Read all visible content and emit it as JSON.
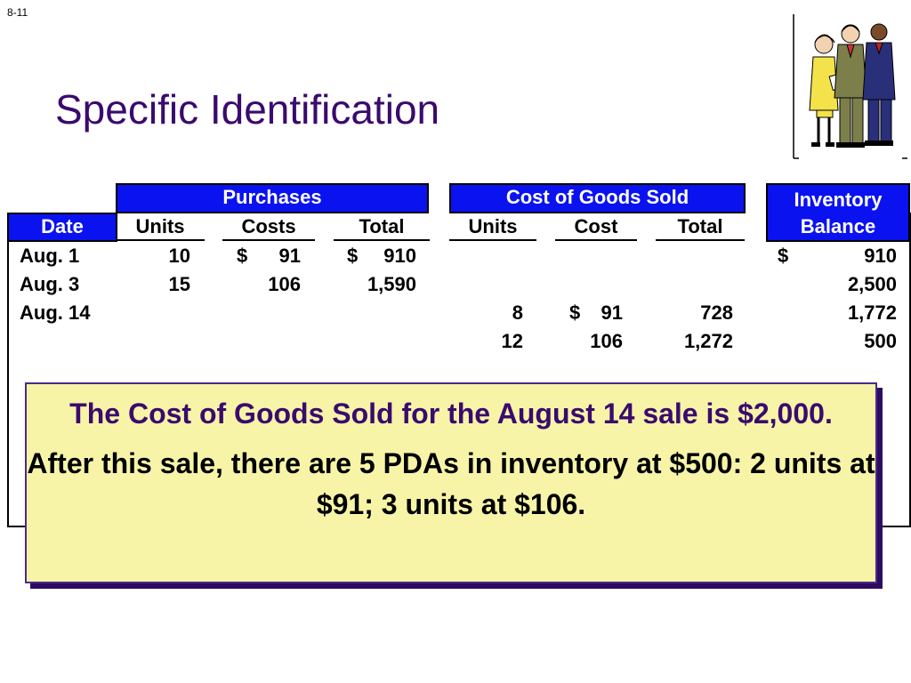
{
  "slide_number": "8-11",
  "title": "Specific Identification",
  "clipart": {
    "icon": "business-people-icon"
  },
  "table": {
    "group_headers": {
      "purchases": "Purchases",
      "cogs": "Cost of Goods Sold",
      "inventory_line1": "Inventory",
      "inventory_line2": "Balance"
    },
    "sub_headers": {
      "date": "Date",
      "p_units": "Units",
      "p_costs": "Costs",
      "p_total": "Total",
      "c_units": "Units",
      "c_cost": "Cost",
      "c_total": "Total"
    },
    "rows": [
      {
        "date": "Aug. 1",
        "p_units": "10",
        "p_cost_sym": "$",
        "p_cost": "91",
        "p_total_sym": "$",
        "p_total": "910",
        "c_units": "",
        "c_cost_sym": "",
        "c_cost": "",
        "c_total": "",
        "inv_sym": "$",
        "inv": "910"
      },
      {
        "date": "Aug. 3",
        "p_units": "15",
        "p_cost_sym": "",
        "p_cost": "106",
        "p_total_sym": "",
        "p_total": "1,590",
        "c_units": "",
        "c_cost_sym": "",
        "c_cost": "",
        "c_total": "",
        "inv_sym": "",
        "inv": "2,500"
      },
      {
        "date": "Aug. 14",
        "p_units": "",
        "p_cost_sym": "",
        "p_cost": "",
        "p_total_sym": "",
        "p_total": "",
        "c_units": "8",
        "c_cost_sym": "$",
        "c_cost": "91",
        "c_total": "728",
        "inv_sym": "",
        "inv": "1,772"
      },
      {
        "date": "",
        "p_units": "",
        "p_cost_sym": "",
        "p_cost": "",
        "p_total_sym": "",
        "p_total": "",
        "c_units": "12",
        "c_cost_sym": "",
        "c_cost": "106",
        "c_total": "1,272",
        "inv_sym": "",
        "inv": "500"
      }
    ]
  },
  "callout": {
    "line1": "The Cost of Goods Sold for the August 14 sale is $2,000.",
    "line2": "After this sale, there are 5 PDAs in inventory at $500: 2 units at $91; 3 units at $106."
  },
  "colors": {
    "title": "#3a0a6e",
    "header_bg": "#0b12f0",
    "callout_bg": "#f7f4a8",
    "callout_shadow": "#2d0b62"
  }
}
